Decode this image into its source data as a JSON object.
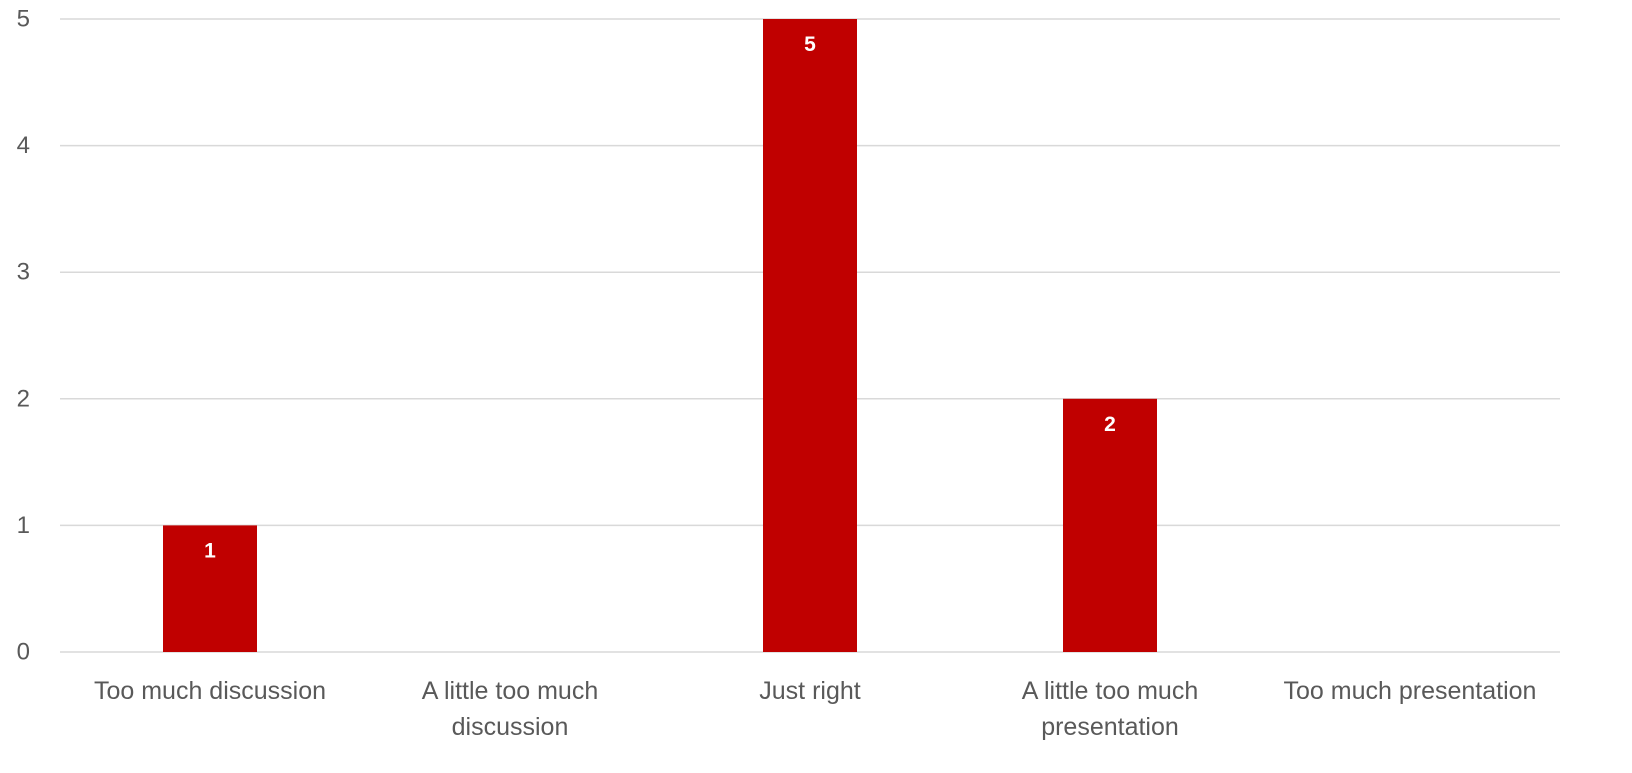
{
  "chart_data": {
    "type": "bar",
    "categories": [
      [
        "Too much discussion"
      ],
      [
        "A little too much",
        "discussion"
      ],
      [
        "Just right"
      ],
      [
        "A little too much",
        "presentation"
      ],
      [
        "Too much presentation"
      ]
    ],
    "values": [
      1,
      0,
      5,
      2,
      0
    ],
    "data_labels": [
      "1",
      "",
      "5",
      "2",
      ""
    ],
    "y_ticks": [
      "0",
      "1",
      "2",
      "3",
      "4",
      "5"
    ],
    "ylim": [
      0,
      5
    ],
    "grid": true,
    "legend": "none",
    "colors": {
      "bar": "#c00000",
      "grid": "#d9d9d9",
      "tick_text": "#595959",
      "label_text": "#ffffff"
    }
  }
}
